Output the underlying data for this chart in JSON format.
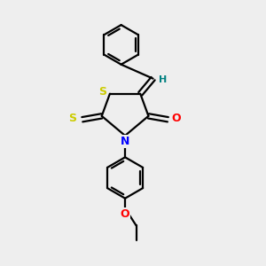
{
  "background_color": "#eeeeee",
  "atom_colors": {
    "S": "#cccc00",
    "N": "#0000ff",
    "O": "#ff0000",
    "C": "#000000",
    "H": "#008080"
  },
  "figsize": [
    3.0,
    3.0
  ],
  "dpi": 100
}
